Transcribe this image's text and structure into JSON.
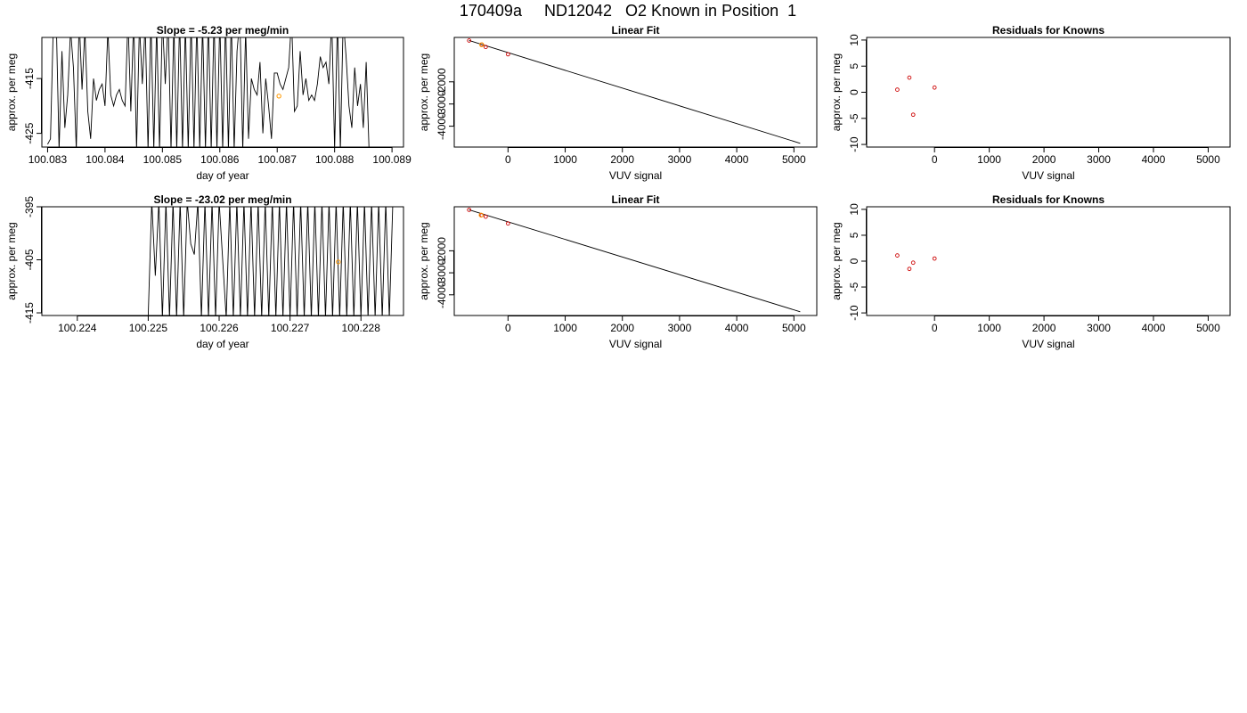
{
  "page": {
    "title": "170409a     ND12042   O2 Known in Position  1"
  },
  "colors": {
    "trace": "#000000",
    "known_point": "#cc0000",
    "highlight_point": "#ff9900",
    "frame": "#000000"
  },
  "chart_data": [
    {
      "type": "line",
      "title": "Slope =  -5.23  per meg/min",
      "xlabel": "day of year",
      "ylabel": "approx. per meg",
      "xlim": [
        100.0829,
        100.0892
      ],
      "ylim": [
        -427.5,
        -407.5
      ],
      "xticks": [
        "100.083",
        "100.084",
        "100.085",
        "100.086",
        "100.087",
        "100.088",
        "100.089"
      ],
      "yticks": [
        "-415",
        "-425"
      ],
      "series": [
        {
          "x": [
            100.083,
            100.08305,
            100.0831,
            100.08315,
            100.0832,
            100.08325,
            100.0833,
            100.08335,
            100.0834,
            100.08345,
            100.0835,
            100.08355,
            100.0836,
            100.08365,
            100.0837,
            100.08375,
            100.0838,
            100.08385,
            100.0839,
            100.08395,
            100.084,
            100.08405,
            100.0841,
            100.08415,
            100.0842,
            100.08425,
            100.0843,
            100.08435,
            100.0844,
            100.08445,
            100.0845,
            100.08455,
            100.0846,
            100.08465,
            100.0847,
            100.08475,
            100.0848,
            100.08485,
            100.0849,
            100.08495,
            100.085,
            100.08505,
            100.0851,
            100.08515,
            100.0852,
            100.08525,
            100.0853,
            100.08535,
            100.0854,
            100.08545,
            100.0855,
            100.08555,
            100.0856,
            100.08565,
            100.0857,
            100.08575,
            100.0858,
            100.08585,
            100.0859,
            100.08595,
            100.086,
            100.08605,
            100.0861,
            100.08615,
            100.0862,
            100.08625,
            100.0863,
            100.08635,
            100.0864,
            100.08645,
            100.0865,
            100.08655,
            100.0866,
            100.08665,
            100.0867,
            100.08675,
            100.0868,
            100.08685,
            100.0869,
            100.08695,
            100.087,
            100.08705,
            100.0871,
            100.08715,
            100.0872,
            100.08725,
            100.0873,
            100.08735,
            100.0874,
            100.08745,
            100.0875,
            100.08755,
            100.0876,
            100.08765,
            100.0877,
            100.08775,
            100.0878,
            100.08785,
            100.0879,
            100.08795,
            100.088,
            100.08805,
            100.0881,
            100.08815,
            100.0882,
            100.08825,
            100.0883,
            100.08835,
            100.0884,
            100.08845,
            100.0885,
            100.08855,
            100.0886
          ],
          "y": [
            -427,
            -426,
            -405,
            -404,
            -428,
            -410,
            -424,
            -418,
            -406,
            -413,
            -428,
            -404,
            -417,
            -406,
            -421,
            -426,
            -415,
            -419,
            -417,
            -416,
            -420,
            -406,
            -418,
            -420,
            -418,
            -417,
            -419,
            -420,
            -404,
            -421,
            -404,
            -428,
            -405,
            -416,
            -405,
            -428,
            -404,
            -428,
            -405,
            -428,
            -404,
            -416,
            -404,
            -428,
            -405,
            -428,
            -404,
            -428,
            -405,
            -428,
            -404,
            -428,
            -404,
            -428,
            -405,
            -428,
            -404,
            -428,
            -404,
            -428,
            -404,
            -428,
            -404,
            -428,
            -404,
            -428,
            -410,
            -404,
            -428,
            -406,
            -426,
            -415,
            -417,
            -418,
            -412,
            -425,
            -415,
            -420,
            -426,
            -414,
            -414,
            -416,
            -417,
            -415,
            -413,
            -404,
            -421,
            -420,
            -410,
            -418,
            -415,
            -419,
            -418,
            -419,
            -416,
            -411,
            -413,
            -412,
            -416,
            -404,
            -428,
            -404,
            -428,
            -404,
            -411,
            -420,
            -424,
            -413,
            -420,
            -416,
            -424,
            -412,
            -428
          ]
        }
      ],
      "highlight": {
        "x": [
          100.08703
        ],
        "y": [
          -418.2
        ]
      }
    },
    {
      "type": "line",
      "title": "Linear Fit",
      "xlabel": "VUV signal",
      "ylabel": "approx. per meg",
      "xlim": [
        -940,
        5400
      ],
      "ylim": [
        -4940,
        0
      ],
      "xticks": [
        "0",
        "1000",
        "2000",
        "3000",
        "4000",
        "5000"
      ],
      "yticks": [
        "-2000",
        "-3000",
        "-4000"
      ],
      "series": [
        {
          "x": [
            -680,
            5110
          ],
          "y": [
            -140,
            -4770
          ]
        }
      ],
      "points": {
        "x": [
          -680,
          -460,
          -390,
          0
        ],
        "y": [
          -140,
          -320,
          -430,
          -760
        ]
      },
      "highlight": {
        "x": [
          -460
        ],
        "y": [
          -330
        ]
      }
    },
    {
      "type": "scatter",
      "title": "Residuals for Knowns",
      "xlabel": "VUV signal",
      "ylabel": "approx. per meg",
      "xlim": [
        -1240,
        5400
      ],
      "ylim": [
        -10.5,
        10.5
      ],
      "xticks": [
        "0",
        "1000",
        "2000",
        "3000",
        "4000",
        "5000"
      ],
      "yticks": [
        "10",
        "5",
        "0",
        "-5",
        "-10"
      ],
      "series": [
        {
          "x": [
            -680,
            -460,
            -390,
            0
          ],
          "y": [
            0.5,
            2.8,
            -4.3,
            0.9
          ]
        }
      ]
    },
    {
      "type": "line",
      "title": "Slope =  -23.02  per meg/min",
      "xlabel": "day of year",
      "ylabel": "approx. per meg",
      "xlim": [
        100.2235,
        100.2286
      ],
      "ylim": [
        -415.5,
        -395
      ],
      "xticks": [
        "100.224",
        "100.225",
        "100.226",
        "100.227",
        "100.228"
      ],
      "yticks": [
        "-395",
        "-405",
        "-415"
      ],
      "series": [
        {
          "x": [
            100.2235,
            100.225,
            100.22505,
            100.2251,
            100.22515,
            100.2252,
            100.22525,
            100.2253,
            100.22535,
            100.2254,
            100.22545,
            100.2255,
            100.22555,
            100.2256,
            100.22565,
            100.2257,
            100.22575,
            100.2258,
            100.22585,
            100.2259,
            100.22595,
            100.226,
            100.22605,
            100.2261,
            100.22615,
            100.2262,
            100.22625,
            100.2263,
            100.22635,
            100.2264,
            100.22645,
            100.2265,
            100.22655,
            100.2266,
            100.22665,
            100.2267,
            100.22675,
            100.2268,
            100.22685,
            100.2269,
            100.22695,
            100.227,
            100.22705,
            100.2271,
            100.22715,
            100.2272,
            100.22725,
            100.2273,
            100.22735,
            100.2274,
            100.22745,
            100.2275,
            100.22755,
            100.2276,
            100.22765,
            100.2277,
            100.22775,
            100.2278,
            100.22785,
            100.2279,
            100.22795,
            100.228,
            100.22805,
            100.2281,
            100.22815,
            100.2282,
            100.22825,
            100.2283,
            100.22835,
            100.2284,
            100.22845
          ],
          "y": [
            -415.5,
            -415.5,
            -394,
            -408,
            -394,
            -416,
            -394,
            -416,
            -394,
            -416,
            -394,
            -416,
            -394,
            -402,
            -404,
            -394,
            -416,
            -394,
            -416,
            -394,
            -416,
            -394,
            -405,
            -416,
            -394,
            -416,
            -394,
            -416,
            -394,
            -416,
            -394,
            -416,
            -394,
            -416,
            -394,
            -416,
            -394,
            -416,
            -394,
            -416,
            -394,
            -416,
            -394,
            -416,
            -394,
            -416,
            -394,
            -416,
            -394,
            -416,
            -394,
            -416,
            -394,
            -416,
            -394,
            -416,
            -394,
            -416,
            -394,
            -416,
            -394,
            -416,
            -394,
            -416,
            -394,
            -416,
            -394,
            -416,
            -394,
            -416,
            -394
          ]
        }
      ],
      "highlight": {
        "x": [
          100.22768
        ],
        "y": [
          -405.4
        ]
      }
    },
    {
      "type": "line",
      "title": "Linear Fit",
      "xlabel": "VUV signal",
      "ylabel": "approx. per meg",
      "xlim": [
        -940,
        5400
      ],
      "ylim": [
        -4940,
        0
      ],
      "xticks": [
        "0",
        "1000",
        "2000",
        "3000",
        "4000",
        "5000"
      ],
      "yticks": [
        "-2000",
        "-3000",
        "-4000"
      ],
      "series": [
        {
          "x": [
            -680,
            5110
          ],
          "y": [
            -140,
            -4770
          ]
        }
      ],
      "points": {
        "x": [
          -680,
          -460,
          -390,
          0
        ],
        "y": [
          -140,
          -380,
          -450,
          -760
        ]
      },
      "highlight": {
        "x": [
          -470
        ],
        "y": [
          -380
        ]
      }
    },
    {
      "type": "scatter",
      "title": "Residuals for Knowns",
      "xlabel": "VUV signal",
      "ylabel": "approx. per meg",
      "xlim": [
        -1240,
        5400
      ],
      "ylim": [
        -10.5,
        10.5
      ],
      "xticks": [
        "0",
        "1000",
        "2000",
        "3000",
        "4000",
        "5000"
      ],
      "yticks": [
        "10",
        "5",
        "0",
        "-5",
        "-10"
      ],
      "series": [
        {
          "x": [
            -680,
            -460,
            -390,
            0
          ],
          "y": [
            1.1,
            -1.5,
            -0.3,
            0.5
          ]
        }
      ]
    }
  ]
}
